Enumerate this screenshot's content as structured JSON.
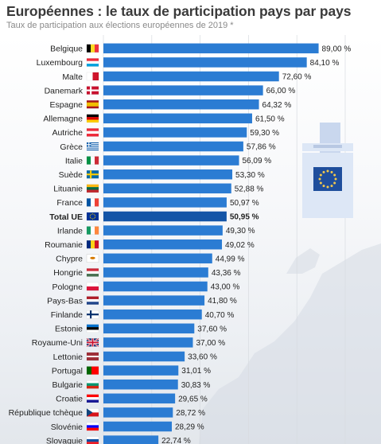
{
  "title": "Européennes : le taux de participation pays par pays",
  "subtitle": "Taux de participation aux élections européennes de 2019 *",
  "colors": {
    "bar": "#2b7cd3",
    "highlight_bar": "#1455a7",
    "grid": "#d7dbe0",
    "map": "#d5dbe3",
    "ballot_box": "#dde7f6",
    "ballot_paper": "#c9d7ee"
  },
  "chart_data": {
    "type": "bar",
    "orientation": "horizontal",
    "title": "Européennes : le taux de participation pays par pays",
    "subtitle": "Taux de participation aux élections européennes de 2019 *",
    "xlim": [
      0,
      100
    ],
    "grid": true,
    "categories": [
      "Belgique",
      "Luxembourg",
      "Malte",
      "Danemark",
      "Espagne",
      "Allemagne",
      "Autriche",
      "Grèce",
      "Italie",
      "Suède",
      "Lituanie",
      "France",
      "Total UE",
      "Irlande",
      "Roumanie",
      "Chypre",
      "Hongrie",
      "Pologne",
      "Pays-Bas",
      "Finlande",
      "Estonie",
      "Royaume-Uni",
      "Lettonie",
      "Portugal",
      "Bulgarie",
      "Croatie",
      "République tchèque",
      "Slovénie",
      "Slovaquie"
    ],
    "values": [
      89.0,
      84.1,
      72.6,
      66.0,
      64.32,
      61.5,
      59.3,
      57.86,
      56.09,
      53.3,
      52.88,
      50.97,
      50.95,
      49.3,
      49.02,
      44.99,
      43.36,
      43.0,
      41.8,
      40.7,
      37.6,
      37.0,
      33.6,
      31.01,
      30.83,
      29.65,
      28.72,
      28.29,
      22.74
    ],
    "labels": [
      "89,00 %",
      "84,10 %",
      "72,60 %",
      "66,00 %",
      "64,32 %",
      "61,50 %",
      "59,30 %",
      "57,86 %",
      "56,09 %",
      "53,30 %",
      "52,88 %",
      "50,97 %",
      "50,95 %",
      "49,30 %",
      "49,02 %",
      "44,99 %",
      "43,36 %",
      "43,00 %",
      "41,80 %",
      "40,70 %",
      "37,60 %",
      "37,00 %",
      "33,60 %",
      "31,01 %",
      "30,83 %",
      "29,65 %",
      "28,72 %",
      "28,29 %",
      "22,74 %"
    ],
    "highlight": "Total UE",
    "flags": [
      {
        "type": "v",
        "colors": [
          "#000000",
          "#FDDA24",
          "#EF3340"
        ]
      },
      {
        "type": "h",
        "colors": [
          "#ED2939",
          "#FFFFFF",
          "#00A1DE"
        ]
      },
      {
        "type": "v",
        "colors": [
          "#FFFFFF",
          "#CF142B"
        ]
      },
      {
        "type": "nordic",
        "colors": [
          "#C8102E",
          "#FFFFFF"
        ]
      },
      {
        "type": "h3",
        "colors": [
          "#AA151B",
          "#F1BF00",
          "#AA151B"
        ]
      },
      {
        "type": "h",
        "colors": [
          "#000000",
          "#DD0000",
          "#FFCE00"
        ]
      },
      {
        "type": "h",
        "colors": [
          "#ED2939",
          "#FFFFFF",
          "#ED2939"
        ]
      },
      {
        "type": "greece",
        "colors": [
          "#0D5EAF",
          "#FFFFFF"
        ]
      },
      {
        "type": "v",
        "colors": [
          "#009246",
          "#FFFFFF",
          "#CE2B37"
        ]
      },
      {
        "type": "nordic",
        "colors": [
          "#006AA7",
          "#FECC00"
        ]
      },
      {
        "type": "h",
        "colors": [
          "#FDB913",
          "#006A44",
          "#C1272D"
        ]
      },
      {
        "type": "v",
        "colors": [
          "#0055A4",
          "#FFFFFF",
          "#EF4135"
        ]
      },
      {
        "type": "eu",
        "colors": [
          "#003399",
          "#FFCC00"
        ]
      },
      {
        "type": "v",
        "colors": [
          "#169B62",
          "#FFFFFF",
          "#FF883E"
        ]
      },
      {
        "type": "v",
        "colors": [
          "#002B7F",
          "#FCD116",
          "#CE1126"
        ]
      },
      {
        "type": "cyprus",
        "colors": [
          "#FFFFFF",
          "#D57800"
        ]
      },
      {
        "type": "h",
        "colors": [
          "#CE2939",
          "#FFFFFF",
          "#477050"
        ]
      },
      {
        "type": "h",
        "colors": [
          "#FFFFFF",
          "#DC143C"
        ]
      },
      {
        "type": "h",
        "colors": [
          "#AE1C28",
          "#FFFFFF",
          "#21468B"
        ]
      },
      {
        "type": "nordic",
        "colors": [
          "#FFFFFF",
          "#002F6C"
        ]
      },
      {
        "type": "h",
        "colors": [
          "#0072CE",
          "#000000",
          "#FFFFFF"
        ]
      },
      {
        "type": "uk",
        "colors": [
          "#012169",
          "#FFFFFF",
          "#C8102E"
        ]
      },
      {
        "type": "latvia",
        "colors": [
          "#9E3039",
          "#FFFFFF"
        ]
      },
      {
        "type": "vp",
        "colors": [
          "#006600",
          "#FF0000"
        ]
      },
      {
        "type": "h",
        "colors": [
          "#FFFFFF",
          "#00966E",
          "#D62612"
        ]
      },
      {
        "type": "h",
        "colors": [
          "#FF0000",
          "#FFFFFF",
          "#171796"
        ]
      },
      {
        "type": "czech",
        "colors": [
          "#FFFFFF",
          "#D7141A",
          "#11457E"
        ]
      },
      {
        "type": "h",
        "colors": [
          "#FFFFFF",
          "#0000FF",
          "#FF0000"
        ]
      },
      {
        "type": "h",
        "colors": [
          "#FFFFFF",
          "#0B4EA2",
          "#EE1C25"
        ]
      }
    ]
  }
}
